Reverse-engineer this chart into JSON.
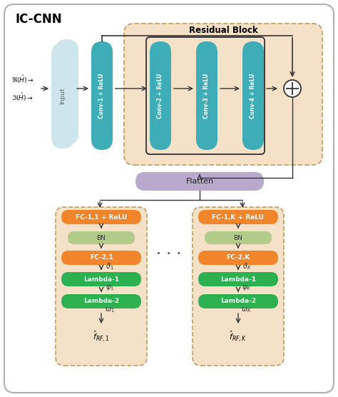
{
  "title": "IC-CNN",
  "residual_block_title": "Residual Block",
  "bg_color": "#ffffff",
  "conv_color": "#3eadb8",
  "input_color_back": "#c5dfe8",
  "input_color_front": "#c5dfe8",
  "conv1_color": "#3eadb8",
  "flatten_color": "#b9a9cc",
  "fc_orange_color": "#f0852c",
  "bn_green_light": "#b0cc88",
  "lambda_green": "#2db050",
  "residual_bg": "#f5e0c8",
  "branch_bg": "#f5e0c8",
  "conv_labels": [
    "Conv-1 + ReLU",
    "Conv-2 + ReLU",
    "Conv-3 + ReLU",
    "Conv-4 + ReLU"
  ],
  "branch1_labels": [
    "FC-1,1 + ReLU",
    "BN",
    "FC-2,1",
    "Lambda-1",
    "Lambda-2"
  ],
  "branch2_labels": [
    "FC-1,K + ReLU",
    "BN",
    "FC-2,K",
    "Lambda-1",
    "Lambda-2"
  ],
  "branch1_out": "$\\hat{f}_{RF,1}$",
  "branch2_out": "$\\hat{f}_{RF,K}$",
  "input_label1": "$\\Re(\\hat{H})\\rightarrow$",
  "input_label2": "$\\Im(\\hat{H})\\rightarrow$",
  "theta1": "$\\vartheta_1$",
  "psi1": "$\\psi_1$",
  "omega1": "$\\omega_1$",
  "thetaK": "$\\vartheta_K$",
  "psiK": "$\\psi_K$",
  "omegaK": "$\\omega_K$",
  "dots": "· · ·"
}
